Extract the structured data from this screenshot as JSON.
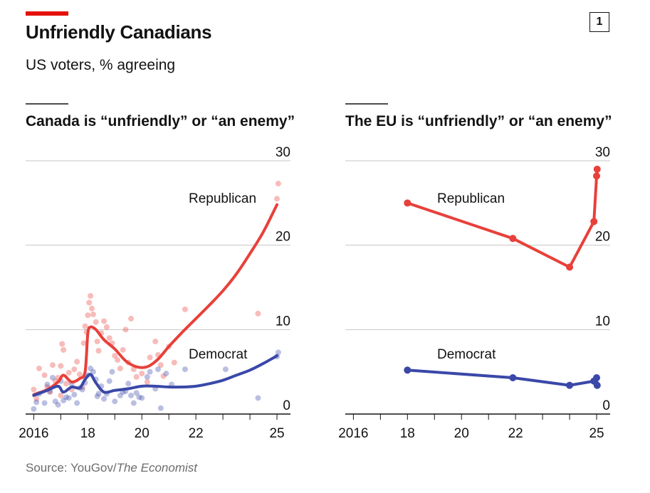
{
  "header": {
    "title": "Unfriendly Canadians",
    "subtitle": "US voters, % agreeing",
    "chart_number": "1",
    "accent_color": "#e3120b"
  },
  "footer": {
    "source_prefix": "Source: YouGov/",
    "source_italic": "The Economist"
  },
  "colors": {
    "republican": "#e8403a",
    "democrat": "#3a48a8"
  },
  "chart_data": [
    {
      "type": "scatter+line",
      "title": "Canada is “unfriendly” or “an enemy”",
      "ylim": [
        0,
        30
      ],
      "yticks": [
        0,
        10,
        20,
        30
      ],
      "xlim": [
        2015.7,
        2025.5
      ],
      "xticks": [
        2016,
        2017,
        2018,
        2019,
        2020,
        2021,
        2022,
        2023,
        2024,
        2025
      ],
      "xtick_labels": [
        "2016",
        "",
        "18",
        "",
        "20",
        "",
        "22",
        "",
        "",
        "25"
      ],
      "series": [
        {
          "name": "Republican",
          "trend": [
            [
              2016.0,
              2.3
            ],
            [
              2016.5,
              2.9
            ],
            [
              2016.9,
              3.8
            ],
            [
              2017.1,
              4.6
            ],
            [
              2017.4,
              3.8
            ],
            [
              2017.7,
              4.2
            ],
            [
              2017.9,
              5.0
            ],
            [
              2018.0,
              9.5
            ],
            [
              2018.1,
              10.3
            ],
            [
              2018.3,
              10.0
            ],
            [
              2018.6,
              8.8
            ],
            [
              2019.0,
              7.7
            ],
            [
              2019.4,
              6.3
            ],
            [
              2019.8,
              5.6
            ],
            [
              2020.2,
              5.6
            ],
            [
              2020.6,
              6.5
            ],
            [
              2021.0,
              8.0
            ],
            [
              2021.5,
              9.7
            ],
            [
              2022.0,
              11.3
            ],
            [
              2022.5,
              12.9
            ],
            [
              2023.0,
              14.6
            ],
            [
              2023.5,
              16.6
            ],
            [
              2024.0,
              19.0
            ],
            [
              2024.5,
              21.6
            ],
            [
              2025.0,
              24.8
            ]
          ],
          "points": [
            [
              2016.0,
              2.9
            ],
            [
              2016.1,
              1.8
            ],
            [
              2016.2,
              5.4
            ],
            [
              2016.4,
              4.6
            ],
            [
              2016.5,
              3.2
            ],
            [
              2016.6,
              2.6
            ],
            [
              2016.7,
              5.8
            ],
            [
              2016.8,
              3.9
            ],
            [
              2016.9,
              4.3
            ],
            [
              2017.0,
              2.2
            ],
            [
              2017.0,
              5.7
            ],
            [
              2017.05,
              8.3
            ],
            [
              2017.1,
              7.6
            ],
            [
              2017.2,
              3.6
            ],
            [
              2017.3,
              4.9
            ],
            [
              2017.4,
              2.9
            ],
            [
              2017.5,
              5.3
            ],
            [
              2017.6,
              6.2
            ],
            [
              2017.7,
              4.7
            ],
            [
              2017.8,
              3.2
            ],
            [
              2017.85,
              8.4
            ],
            [
              2017.9,
              10.4
            ],
            [
              2017.95,
              9.7
            ],
            [
              2018.0,
              11.7
            ],
            [
              2018.05,
              13.2
            ],
            [
              2018.1,
              14.0
            ],
            [
              2018.15,
              12.5
            ],
            [
              2018.2,
              11.8
            ],
            [
              2018.3,
              10.9
            ],
            [
              2018.35,
              8.6
            ],
            [
              2018.4,
              7.5
            ],
            [
              2018.5,
              9.6
            ],
            [
              2018.6,
              11.0
            ],
            [
              2018.7,
              10.3
            ],
            [
              2018.8,
              9.0
            ],
            [
              2018.9,
              8.4
            ],
            [
              2019.0,
              6.9
            ],
            [
              2019.1,
              6.4
            ],
            [
              2019.2,
              5.4
            ],
            [
              2019.3,
              7.6
            ],
            [
              2019.4,
              10.0
            ],
            [
              2019.5,
              6.1
            ],
            [
              2019.6,
              11.3
            ],
            [
              2019.7,
              5.3
            ],
            [
              2019.8,
              4.4
            ],
            [
              2020.0,
              4.8
            ],
            [
              2020.2,
              3.8
            ],
            [
              2020.3,
              6.7
            ],
            [
              2020.5,
              8.6
            ],
            [
              2020.6,
              7.0
            ],
            [
              2020.7,
              5.8
            ],
            [
              2020.8,
              4.5
            ],
            [
              2021.0,
              8.0
            ],
            [
              2021.2,
              6.1
            ],
            [
              2021.6,
              12.4
            ],
            [
              2024.3,
              11.9
            ],
            [
              2025.0,
              25.5
            ],
            [
              2025.05,
              27.3
            ]
          ]
        },
        {
          "name": "Democrat",
          "trend": [
            [
              2016.0,
              2.2
            ],
            [
              2016.5,
              2.8
            ],
            [
              2016.9,
              3.3
            ],
            [
              2017.1,
              2.6
            ],
            [
              2017.4,
              3.2
            ],
            [
              2017.7,
              3.1
            ],
            [
              2017.9,
              4.1
            ],
            [
              2018.1,
              4.7
            ],
            [
              2018.3,
              3.7
            ],
            [
              2018.6,
              2.6
            ],
            [
              2019.0,
              2.8
            ],
            [
              2019.5,
              3.0
            ],
            [
              2020.0,
              3.3
            ],
            [
              2020.5,
              3.3
            ],
            [
              2021.0,
              3.2
            ],
            [
              2021.5,
              3.2
            ],
            [
              2022.0,
              3.3
            ],
            [
              2022.5,
              3.6
            ],
            [
              2023.0,
              4.0
            ],
            [
              2023.5,
              4.6
            ],
            [
              2024.0,
              5.2
            ],
            [
              2024.5,
              6.0
            ],
            [
              2025.0,
              6.9
            ]
          ],
          "points": [
            [
              2016.0,
              0.6
            ],
            [
              2016.1,
              1.4
            ],
            [
              2016.2,
              2.4
            ],
            [
              2016.4,
              1.3
            ],
            [
              2016.5,
              3.5
            ],
            [
              2016.6,
              2.7
            ],
            [
              2016.7,
              4.3
            ],
            [
              2016.8,
              1.5
            ],
            [
              2016.9,
              1.1
            ],
            [
              2017.0,
              3.9
            ],
            [
              2017.1,
              1.6
            ],
            [
              2017.2,
              2.0
            ],
            [
              2017.3,
              1.9
            ],
            [
              2017.4,
              3.6
            ],
            [
              2017.5,
              2.3
            ],
            [
              2017.6,
              1.3
            ],
            [
              2017.7,
              3.1
            ],
            [
              2017.8,
              2.9
            ],
            [
              2017.9,
              3.7
            ],
            [
              2018.0,
              4.6
            ],
            [
              2018.1,
              5.4
            ],
            [
              2018.2,
              5.0
            ],
            [
              2018.3,
              4.1
            ],
            [
              2018.35,
              2.1
            ],
            [
              2018.4,
              2.4
            ],
            [
              2018.5,
              3.3
            ],
            [
              2018.6,
              1.8
            ],
            [
              2018.7,
              2.4
            ],
            [
              2018.8,
              3.9
            ],
            [
              2018.9,
              5.0
            ],
            [
              2019.0,
              1.5
            ],
            [
              2019.2,
              2.2
            ],
            [
              2019.3,
              2.6
            ],
            [
              2019.4,
              2.7
            ],
            [
              2019.5,
              3.6
            ],
            [
              2019.6,
              2.2
            ],
            [
              2019.7,
              1.3
            ],
            [
              2019.8,
              2.5
            ],
            [
              2019.9,
              2.0
            ],
            [
              2020.0,
              1.9
            ],
            [
              2020.2,
              4.4
            ],
            [
              2020.3,
              5.0
            ],
            [
              2020.5,
              3.0
            ],
            [
              2020.6,
              5.3
            ],
            [
              2020.7,
              0.7
            ],
            [
              2020.9,
              4.8
            ],
            [
              2021.1,
              3.5
            ],
            [
              2021.6,
              5.3
            ],
            [
              2023.1,
              5.3
            ],
            [
              2024.3,
              1.9
            ],
            [
              2025.0,
              6.8
            ],
            [
              2025.05,
              7.3
            ]
          ]
        }
      ]
    },
    {
      "type": "line",
      "title": "The EU is “unfriendly” or “an enemy”",
      "ylim": [
        0,
        30
      ],
      "yticks": [
        0,
        10,
        20,
        30
      ],
      "xlim": [
        2015.7,
        2025.5
      ],
      "xticks": [
        2016,
        2017,
        2018,
        2019,
        2020,
        2021,
        2022,
        2023,
        2024,
        2025
      ],
      "xtick_labels": [
        "2016",
        "",
        "18",
        "",
        "20",
        "",
        "22",
        "",
        "",
        "25"
      ],
      "series": [
        {
          "name": "Republican",
          "values": [
            [
              2018.0,
              25.0
            ],
            [
              2021.9,
              20.8
            ],
            [
              2024.0,
              17.4
            ],
            [
              2024.9,
              22.8
            ],
            [
              2025.0,
              28.2
            ],
            [
              2025.02,
              29.0
            ]
          ]
        },
        {
          "name": "Democrat",
          "values": [
            [
              2018.0,
              5.2
            ],
            [
              2021.9,
              4.3
            ],
            [
              2024.0,
              3.4
            ],
            [
              2024.9,
              3.9
            ],
            [
              2025.0,
              4.3
            ],
            [
              2025.02,
              3.4
            ]
          ]
        }
      ]
    }
  ]
}
